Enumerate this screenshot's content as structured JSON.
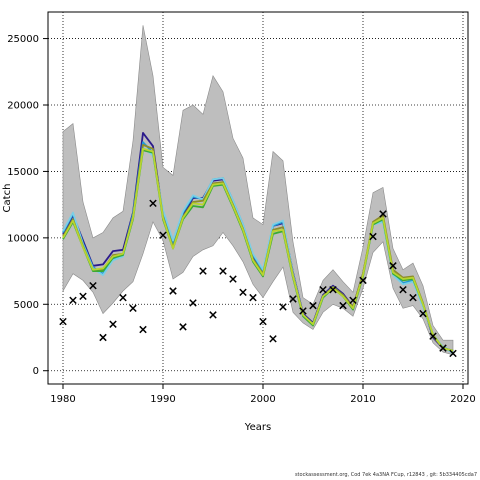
{
  "chart_data": {
    "type": "line",
    "title": "",
    "xlabel": "Years",
    "ylabel": "Catch",
    "xlim": [
      1978.5,
      2020.5
    ],
    "ylim": [
      -1000,
      27000
    ],
    "xticks": [
      1980,
      1990,
      2000,
      2010,
      2020
    ],
    "yticks": [
      0,
      5000,
      10000,
      15000,
      20000,
      25000
    ],
    "grid": true,
    "grid_style": "dotted",
    "colors": {
      "band": "#bebebe",
      "band_edge": "#8a8a8a",
      "observed": "#000000",
      "series": [
        "#2b1a8c",
        "#1f9bd6",
        "#7ccfe6",
        "#8c8c2a",
        "#3aaa35",
        "#b8d430"
      ]
    },
    "band": {
      "x": [
        1980,
        1981,
        1982,
        1983,
        1984,
        1985,
        1986,
        1987,
        1988,
        1989,
        1990,
        1991,
        1992,
        1993,
        1994,
        1995,
        1996,
        1997,
        1998,
        1999,
        2000,
        2001,
        2002,
        2003,
        2004,
        2005,
        2006,
        2007,
        2008,
        2009,
        2010,
        2011,
        2012,
        2013,
        2014,
        2015,
        2016,
        2017,
        2018,
        2019
      ],
      "upper": [
        18000,
        18600,
        12700,
        10000,
        10400,
        11500,
        12000,
        17300,
        26000,
        22200,
        15300,
        14700,
        19600,
        20000,
        19300,
        22200,
        21000,
        17500,
        16000,
        11500,
        11000,
        16500,
        15800,
        9700,
        5500,
        5000,
        6800,
        7600,
        6700,
        5900,
        9300,
        13400,
        13800,
        9200,
        7600,
        8100,
        6400,
        3400,
        2300,
        2300
      ],
      "lower": [
        6000,
        7300,
        6800,
        5900,
        4300,
        5100,
        6000,
        6700,
        8800,
        11200,
        9800,
        6900,
        7400,
        8600,
        9100,
        9400,
        10400,
        9400,
        8200,
        6500,
        5500,
        6700,
        7800,
        4400,
        3600,
        3100,
        4400,
        5000,
        4700,
        4100,
        6200,
        8900,
        9700,
        6200,
        4700,
        4900,
        3900,
        2100,
        1400,
        1200
      ]
    },
    "series": [
      {
        "values": [
          10300,
          11700,
          9800,
          7900,
          8000,
          9000,
          9100,
          11900,
          17900,
          16900,
          11700,
          9400,
          11700,
          13000,
          13000,
          14300,
          14400,
          12700,
          10900,
          8600,
          7400,
          10900,
          11100,
          7400,
          4300,
          3600,
          5700,
          6400,
          5800,
          4800,
          7300,
          11000,
          11500,
          7400,
          6900,
          7000,
          5000,
          2500,
          1700,
          1500
        ]
      },
      {
        "values": [
          10400,
          11800,
          9600,
          7800,
          7300,
          8400,
          8700,
          11800,
          17200,
          16400,
          11900,
          9600,
          11900,
          13100,
          12900,
          14400,
          14500,
          12800,
          11000,
          8700,
          7500,
          10900,
          11200,
          7300,
          4200,
          3500,
          5600,
          6300,
          5700,
          4700,
          7200,
          11100,
          11300,
          7300,
          6600,
          6800,
          4900,
          2600,
          1800,
          1400
        ]
      },
      {
        "values": [
          10500,
          11900,
          9500,
          7700,
          7200,
          8300,
          8600,
          11600,
          16800,
          16200,
          12100,
          9800,
          12000,
          13200,
          12900,
          14400,
          14500,
          12800,
          11000,
          8800,
          7600,
          11000,
          11300,
          7300,
          4200,
          3500,
          5500,
          6200,
          5600,
          4700,
          7200,
          11000,
          11200,
          7200,
          6500,
          6700,
          4800,
          2700,
          1800,
          1300
        ]
      },
      {
        "values": [
          10100,
          11400,
          9400,
          7600,
          7600,
          8700,
          8800,
          11600,
          17000,
          16700,
          11600,
          9300,
          11600,
          12700,
          12800,
          14100,
          14200,
          12500,
          10700,
          8400,
          7300,
          10600,
          10800,
          7200,
          4200,
          3500,
          5600,
          6300,
          5700,
          4800,
          7300,
          11200,
          11700,
          7600,
          7000,
          7100,
          5100,
          2600,
          1700,
          1500
        ]
      },
      {
        "values": [
          9900,
          11200,
          9300,
          7500,
          7500,
          8500,
          8700,
          11400,
          16600,
          16400,
          11400,
          9200,
          11400,
          12400,
          12300,
          13900,
          14000,
          12300,
          10500,
          8200,
          7100,
          10300,
          10500,
          7000,
          4100,
          3400,
          5500,
          6200,
          5600,
          4600,
          7100,
          11000,
          11400,
          7300,
          6800,
          6900,
          5000,
          2700,
          1700,
          1500
        ]
      },
      {
        "values": [
          10000,
          11300,
          9300,
          7600,
          7700,
          8600,
          8800,
          11500,
          16700,
          16500,
          11500,
          9200,
          11500,
          12600,
          12500,
          14000,
          14100,
          12400,
          10600,
          8300,
          7200,
          10500,
          10600,
          7100,
          4200,
          3500,
          5600,
          6200,
          5600,
          4700,
          7200,
          11100,
          11500,
          7400,
          6900,
          7000,
          5000,
          2700,
          1700,
          1500
        ]
      }
    ],
    "observed": {
      "x": [
        1980,
        1981,
        1982,
        1983,
        1984,
        1985,
        1986,
        1987,
        1988,
        1989,
        1990,
        1991,
        1992,
        1993,
        1994,
        1995,
        1996,
        1997,
        1998,
        1999,
        2000,
        2001,
        2002,
        2003,
        2004,
        2005,
        2006,
        2007,
        2008,
        2009,
        2010,
        2011,
        2012,
        2013,
        2014,
        2015,
        2016,
        2017,
        2018,
        2019
      ],
      "values": [
        3700,
        5300,
        5600,
        6400,
        2500,
        3500,
        5500,
        4700,
        3100,
        12600,
        10200,
        6000,
        3300,
        5100,
        7500,
        4200,
        7500,
        6900,
        5900,
        5500,
        3700,
        2400,
        4800,
        5400,
        4500,
        4900,
        6100,
        6100,
        4900,
        5300,
        6800,
        10100,
        11800,
        7900,
        6100,
        5500,
        4300,
        2600,
        1700,
        1300
      ]
    }
  },
  "footer_text": "stockassessment.org,  Cod  7ek  4a3NA  FCup,  r12843 ,  git: 5b334405cda7"
}
